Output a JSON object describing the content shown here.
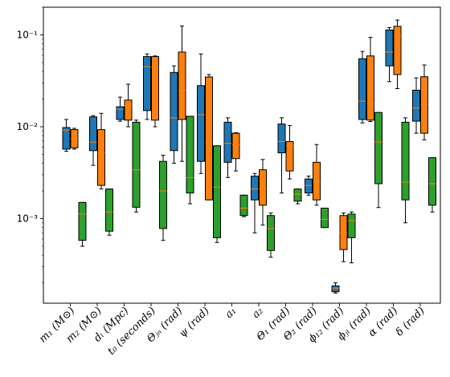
{
  "chart_data": {
    "type": "box",
    "y_scale": "log",
    "ylim": [
      0.00012,
      0.2
    ],
    "y_ticks": [
      {
        "value": 0.001,
        "label": "10⁻³"
      },
      {
        "value": 0.01,
        "label": "10⁻²"
      },
      {
        "value": 0.1,
        "label": "10⁻¹"
      }
    ],
    "categories": [
      "m₁ (M⊙)",
      "m₂ (M⊙)",
      "dₗ (Mpc)",
      "t₀ (seconds)",
      "Θⱼₙ (rad)",
      "ψ (rad)",
      "a₁",
      "a₂",
      "Θ₁ (rad)",
      "Θ₂ (rad)",
      "ϕ₁₂ (rad)",
      "ϕⱼₗ (rad)",
      "α (rad)",
      "δ (rad)"
    ],
    "colors": {
      "blue": "#1f77b4",
      "orange": "#ff7f0e",
      "green": "#2ca02c",
      "median": "#ff7f0e"
    },
    "series": [
      {
        "color": "blue",
        "boxes": [
          {
            "whislo": 0.0054,
            "q1": 0.0057,
            "med": 0.0092,
            "q3": 0.0098,
            "whishi": 0.012
          },
          {
            "whislo": 0.0038,
            "q1": 0.0055,
            "med": 0.0068,
            "q3": 0.0128,
            "whishi": 0.0132
          },
          {
            "whislo": 0.0115,
            "q1": 0.012,
            "med": 0.0155,
            "q3": 0.0165,
            "whishi": 0.021
          },
          {
            "whislo": 0.012,
            "q1": 0.015,
            "med": 0.045,
            "q3": 0.058,
            "whishi": 0.062
          },
          {
            "whislo": 0.004,
            "q1": 0.0055,
            "med": 0.0125,
            "q3": 0.039,
            "whishi": 0.046
          },
          {
            "whislo": 0.0031,
            "q1": 0.0042,
            "med": 0.0135,
            "q3": 0.028,
            "whishi": 0.062
          },
          {
            "whislo": 0.0028,
            "q1": 0.0041,
            "med": 0.0066,
            "q3": 0.0112,
            "whishi": 0.0125
          },
          {
            "whislo": 0.0007,
            "q1": 0.0016,
            "med": 0.0021,
            "q3": 0.0029,
            "whishi": 0.0031
          },
          {
            "whislo": 0.0019,
            "q1": 0.0052,
            "med": 0.0069,
            "q3": 0.0107,
            "whishi": 0.0125
          },
          {
            "whislo": 0.0018,
            "q1": 0.0019,
            "med": 0.0023,
            "q3": 0.0027,
            "whishi": 0.0029
          },
          {
            "whislo": 0.000155,
            "q1": 0.00016,
            "med": 0.000175,
            "q3": 0.000185,
            "whishi": 0.0002
          },
          {
            "whislo": 0.011,
            "q1": 0.012,
            "med": 0.019,
            "q3": 0.055,
            "whishi": 0.066
          },
          {
            "whislo": 0.031,
            "q1": 0.046,
            "med": 0.065,
            "q3": 0.113,
            "whishi": 0.12
          },
          {
            "whislo": 0.0085,
            "q1": 0.0115,
            "med": 0.016,
            "q3": 0.025,
            "whishi": 0.034
          }
        ]
      },
      {
        "color": "orange",
        "boxes": [
          {
            "whislo": 0.0057,
            "q1": 0.0059,
            "med": 0.0074,
            "q3": 0.0093,
            "whishi": 0.0096
          },
          {
            "whislo": 0.0021,
            "q1": 0.0023,
            "med": 0.0052,
            "q3": 0.0093,
            "whishi": 0.014
          },
          {
            "whislo": 0.01,
            "q1": 0.0118,
            "med": 0.017,
            "q3": 0.0195,
            "whishi": 0.029
          },
          {
            "whislo": 0.01,
            "q1": 0.0118,
            "med": 0.044,
            "q3": 0.058,
            "whishi": 0.059
          },
          {
            "whislo": 0.0042,
            "q1": 0.012,
            "med": 0.025,
            "q3": 0.065,
            "whishi": 0.125
          },
          {
            "whislo": 0.0016,
            "q1": 0.0016,
            "med": 0.0068,
            "q3": 0.0348,
            "whishi": 0.037
          },
          {
            "whislo": 0.0033,
            "q1": 0.0045,
            "med": 0.0064,
            "q3": 0.0085,
            "whishi": 0.0086
          },
          {
            "whislo": 0.00085,
            "q1": 0.0014,
            "med": 0.0021,
            "q3": 0.0034,
            "whishi": 0.0044
          },
          {
            "whislo": 0.0027,
            "q1": 0.0033,
            "med": 0.0062,
            "q3": 0.0069,
            "whishi": 0.0103
          },
          {
            "whislo": 0.0014,
            "q1": 0.0016,
            "med": 0.0025,
            "q3": 0.0041,
            "whishi": 0.0064
          },
          {
            "whislo": 0.00034,
            "q1": 0.00046,
            "med": 0.0007,
            "q3": 0.00108,
            "whishi": 0.00115
          },
          {
            "whislo": 0.0114,
            "q1": 0.0118,
            "med": 0.018,
            "q3": 0.059,
            "whishi": 0.094
          },
          {
            "whislo": 0.026,
            "q1": 0.037,
            "med": 0.096,
            "q3": 0.124,
            "whishi": 0.145
          },
          {
            "whislo": 0.0072,
            "q1": 0.0085,
            "med": 0.0175,
            "q3": 0.035,
            "whishi": 0.047
          }
        ]
      },
      {
        "color": "green",
        "boxes": [
          {
            "whislo": 0.0005,
            "q1": 0.00058,
            "med": 0.00112,
            "q3": 0.0015,
            "whishi": 0.0015
          },
          {
            "whislo": 0.00066,
            "q1": 0.00073,
            "med": 0.00118,
            "q3": 0.0021,
            "whishi": 0.0021
          },
          {
            "whislo": 0.00118,
            "q1": 0.00133,
            "med": 0.0034,
            "q3": 0.0112,
            "whishi": 0.0118
          },
          {
            "whislo": 0.00058,
            "q1": 0.00078,
            "med": 0.002,
            "q3": 0.0042,
            "whishi": 0.0049
          },
          {
            "whislo": 0.00145,
            "q1": 0.0019,
            "med": 0.0028,
            "q3": 0.013,
            "whishi": 0.013
          },
          {
            "whislo": 0.00055,
            "q1": 0.00062,
            "med": 0.0022,
            "q3": 0.0062,
            "whishi": 0.0062
          },
          {
            "whislo": 0.00105,
            "q1": 0.00108,
            "med": 0.0013,
            "q3": 0.0018,
            "whishi": 0.0018
          },
          {
            "whislo": 0.00038,
            "q1": 0.00045,
            "med": 0.00078,
            "q3": 0.00108,
            "whishi": 0.00115
          },
          {
            "whislo": 0.00145,
            "q1": 0.00155,
            "med": 0.00185,
            "q3": 0.0021,
            "whishi": 0.0021
          },
          {
            "whislo": 0.0008,
            "q1": 0.0008,
            "med": 0.00098,
            "q3": 0.0013,
            "whishi": 0.0013
          },
          {
            "whislo": 0.00033,
            "q1": 0.00062,
            "med": 0.00095,
            "q3": 0.00112,
            "whishi": 0.00118
          },
          {
            "whislo": 0.00132,
            "q1": 0.0024,
            "med": 0.0068,
            "q3": 0.0143,
            "whishi": 0.0143
          },
          {
            "whislo": 0.0009,
            "q1": 0.0016,
            "med": 0.0025,
            "q3": 0.0112,
            "whishi": 0.0125
          },
          {
            "whislo": 0.00118,
            "q1": 0.0014,
            "med": 0.0024,
            "q3": 0.0046,
            "whishi": 0.0046
          }
        ]
      }
    ]
  }
}
